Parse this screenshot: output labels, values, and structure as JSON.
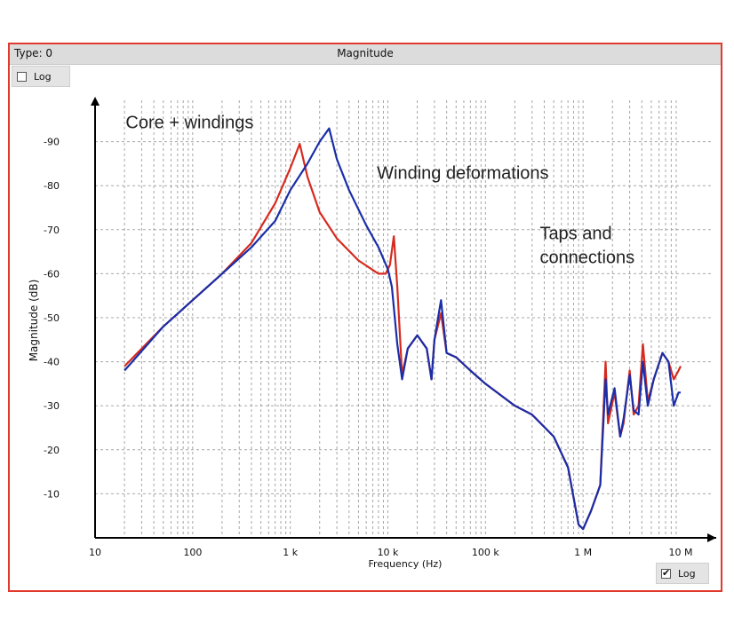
{
  "window": {
    "type_label": "Type: 0",
    "title": "Magnitude",
    "y_log_label": "Log",
    "y_log_checked": false,
    "x_log_label": "Log",
    "x_log_checked": true
  },
  "chart_data": {
    "type": "line",
    "title": "Magnitude",
    "xlabel": "Frequency (Hz)",
    "ylabel": "Magnitude (dB)",
    "x_scale": "log",
    "xlim": [
      10,
      20000000
    ],
    "ylim": [
      -100,
      0
    ],
    "x_ticks": [
      {
        "value": 10,
        "label": "10"
      },
      {
        "value": 100,
        "label": "100"
      },
      {
        "value": 1000,
        "label": "1 k"
      },
      {
        "value": 10000,
        "label": "10 k"
      },
      {
        "value": 100000,
        "label": "100 k"
      },
      {
        "value": 1000000,
        "label": "1 M"
      },
      {
        "value": 10000000,
        "label": "10 M"
      }
    ],
    "y_ticks": [
      {
        "value": -10,
        "label": "-10"
      },
      {
        "value": -20,
        "label": "-20"
      },
      {
        "value": -30,
        "label": "-30"
      },
      {
        "value": -40,
        "label": "-40"
      },
      {
        "value": -50,
        "label": "-50"
      },
      {
        "value": -60,
        "label": "-60"
      },
      {
        "value": -70,
        "label": "-70"
      },
      {
        "value": -80,
        "label": "-80"
      },
      {
        "value": -90,
        "label": "-90"
      }
    ],
    "grid": true,
    "series": [
      {
        "color": "#d62a1e",
        "points": [
          [
            20,
            -39
          ],
          [
            50,
            -48
          ],
          [
            100,
            -54
          ],
          [
            200,
            -60
          ],
          [
            400,
            -67
          ],
          [
            700,
            -76
          ],
          [
            1000,
            -84
          ],
          [
            1250,
            -89.5
          ],
          [
            1500,
            -82
          ],
          [
            2000,
            -74
          ],
          [
            3000,
            -68
          ],
          [
            5000,
            -63
          ],
          [
            8000,
            -60
          ],
          [
            9500,
            -60
          ],
          [
            10500,
            -62
          ],
          [
            11500,
            -68.5
          ],
          [
            12500,
            -57
          ],
          [
            14000,
            -37
          ],
          [
            16000,
            -43
          ],
          [
            20000,
            -46
          ],
          [
            25000,
            -43
          ],
          [
            28000,
            -36
          ],
          [
            30000,
            -45
          ],
          [
            35000,
            -51
          ],
          [
            40000,
            -42
          ],
          [
            50000,
            -41
          ],
          [
            70000,
            -38
          ],
          [
            100000,
            -35
          ],
          [
            200000,
            -30
          ],
          [
            300000,
            -28
          ],
          [
            500000,
            -23
          ],
          [
            700000,
            -16
          ],
          [
            900000,
            -3
          ],
          [
            1000000,
            -2
          ],
          [
            1200000,
            -6
          ],
          [
            1500000,
            -12
          ],
          [
            1700000,
            -40
          ],
          [
            1800000,
            -26
          ],
          [
            2100000,
            -33
          ],
          [
            2400000,
            -23
          ],
          [
            2600000,
            -26
          ],
          [
            3000000,
            -38
          ],
          [
            3300000,
            -28
          ],
          [
            3700000,
            -30
          ],
          [
            4100000,
            -44
          ],
          [
            4600000,
            -31
          ],
          [
            5300000,
            -36
          ],
          [
            6500000,
            -42
          ],
          [
            7500000,
            -40
          ],
          [
            8500000,
            -36
          ],
          [
            9500000,
            -38
          ],
          [
            10000000,
            -39
          ]
        ]
      },
      {
        "color": "#1a2ea8",
        "points": [
          [
            20,
            -38
          ],
          [
            50,
            -48
          ],
          [
            100,
            -54
          ],
          [
            200,
            -60
          ],
          [
            400,
            -66
          ],
          [
            700,
            -72
          ],
          [
            1000,
            -79
          ],
          [
            1500,
            -85
          ],
          [
            2000,
            -90
          ],
          [
            2500,
            -93
          ],
          [
            3000,
            -86
          ],
          [
            4000,
            -79
          ],
          [
            6000,
            -71
          ],
          [
            8000,
            -66
          ],
          [
            10000,
            -61
          ],
          [
            11000,
            -57
          ],
          [
            12500,
            -44
          ],
          [
            14000,
            -36
          ],
          [
            16000,
            -43
          ],
          [
            20000,
            -46
          ],
          [
            25000,
            -43
          ],
          [
            28000,
            -36
          ],
          [
            30000,
            -45
          ],
          [
            35000,
            -54
          ],
          [
            40000,
            -42
          ],
          [
            50000,
            -41
          ],
          [
            70000,
            -38
          ],
          [
            100000,
            -35
          ],
          [
            200000,
            -30
          ],
          [
            300000,
            -28
          ],
          [
            500000,
            -23
          ],
          [
            700000,
            -16
          ],
          [
            900000,
            -3
          ],
          [
            1000000,
            -2
          ],
          [
            1200000,
            -6
          ],
          [
            1500000,
            -12
          ],
          [
            1700000,
            -36
          ],
          [
            1800000,
            -28
          ],
          [
            2100000,
            -34
          ],
          [
            2400000,
            -23
          ],
          [
            2600000,
            -27
          ],
          [
            3000000,
            -37
          ],
          [
            3300000,
            -29
          ],
          [
            3700000,
            -28
          ],
          [
            4100000,
            -40
          ],
          [
            4600000,
            -30
          ],
          [
            5300000,
            -36
          ],
          [
            6500000,
            -42
          ],
          [
            7500000,
            -40
          ],
          [
            8500000,
            -30
          ],
          [
            9500000,
            -33
          ],
          [
            10000000,
            -33
          ]
        ]
      }
    ],
    "annotations": [
      {
        "text": "Core + windings",
        "color": "#f4b0a0",
        "lines": [
          "Core + windings"
        ],
        "x_range": [
          16,
          9500
        ],
        "y_range": [
          -99,
          -90
        ]
      },
      {
        "text": "Winding deformations",
        "color": "#2fd3a6",
        "lines": [
          "Winding deformations"
        ],
        "x_range": [
          6000,
          1000000
        ],
        "y_range": [
          -91,
          -75
        ]
      },
      {
        "text": "Taps and connections",
        "color": "#f8f1b0",
        "lines": [
          "Taps and",
          "connections"
        ],
        "x_range": [
          280000,
          11000000
        ],
        "y_range": [
          -75,
          -58
        ]
      }
    ]
  }
}
